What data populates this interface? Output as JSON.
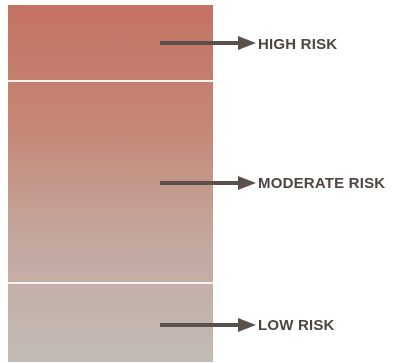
{
  "levels": [
    {
      "label": "HIGH RISK"
    },
    {
      "label": "MODERATE RISK"
    },
    {
      "label": "LOW RISK"
    }
  ],
  "colors": {
    "gradient_top": "#c47162",
    "gradient_bottom": "#c2bcb6",
    "arrow": "#5a514d",
    "text": "#4e4440"
  }
}
